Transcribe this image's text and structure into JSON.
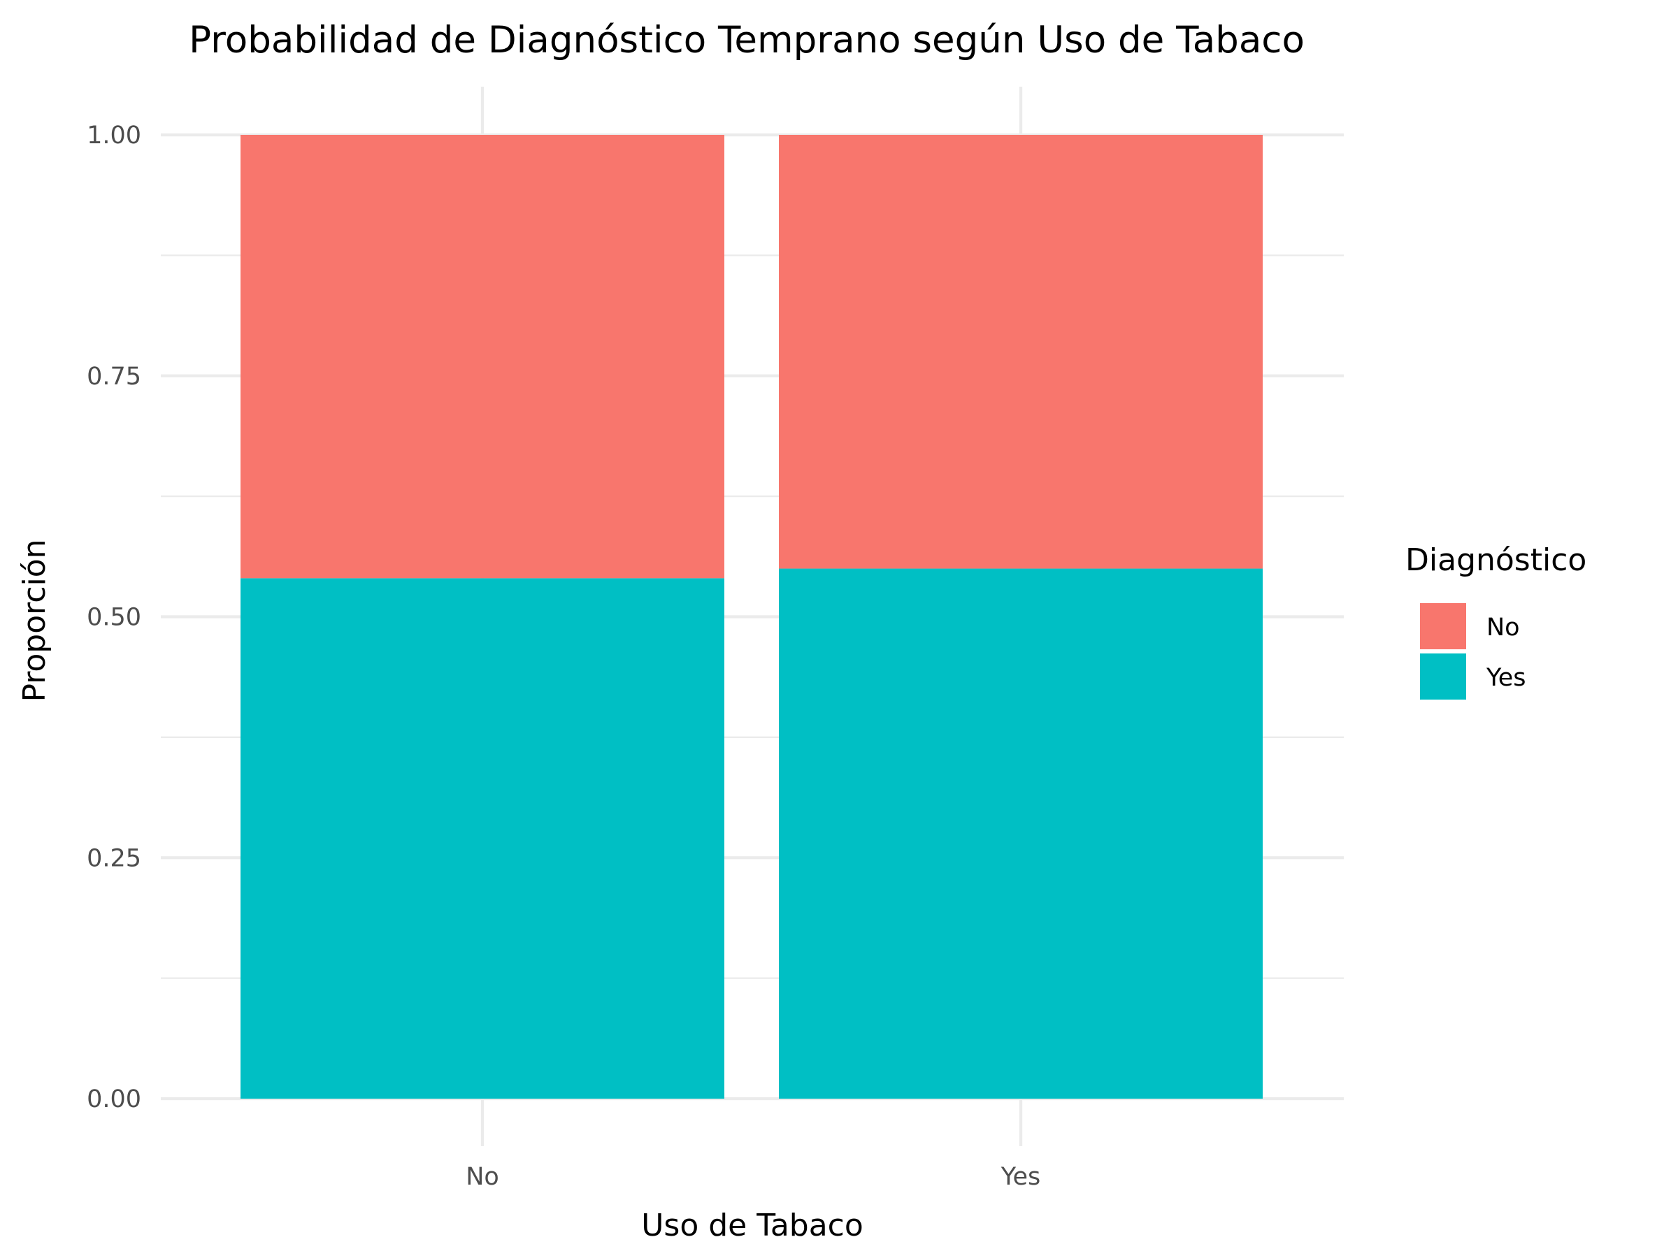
{
  "chart_data": {
    "type": "bar",
    "stacked": true,
    "title": "Probabilidad de Diagnóstico Temprano según Uso de Tabaco",
    "xlabel": "Uso de Tabaco",
    "ylabel": "Proporción",
    "categories": [
      "No",
      "Yes"
    ],
    "ylim": [
      0,
      1
    ],
    "yticks": [
      "0.00",
      "0.25",
      "0.50",
      "0.75",
      "1.00"
    ],
    "grid": true,
    "legend": {
      "title": "Diagnóstico",
      "placement": "right"
    },
    "series": [
      {
        "name": "No",
        "color": "#F8766D",
        "values": [
          0.46,
          0.45
        ]
      },
      {
        "name": "Yes",
        "color": "#00BFC4",
        "values": [
          0.54,
          0.55
        ]
      }
    ]
  }
}
